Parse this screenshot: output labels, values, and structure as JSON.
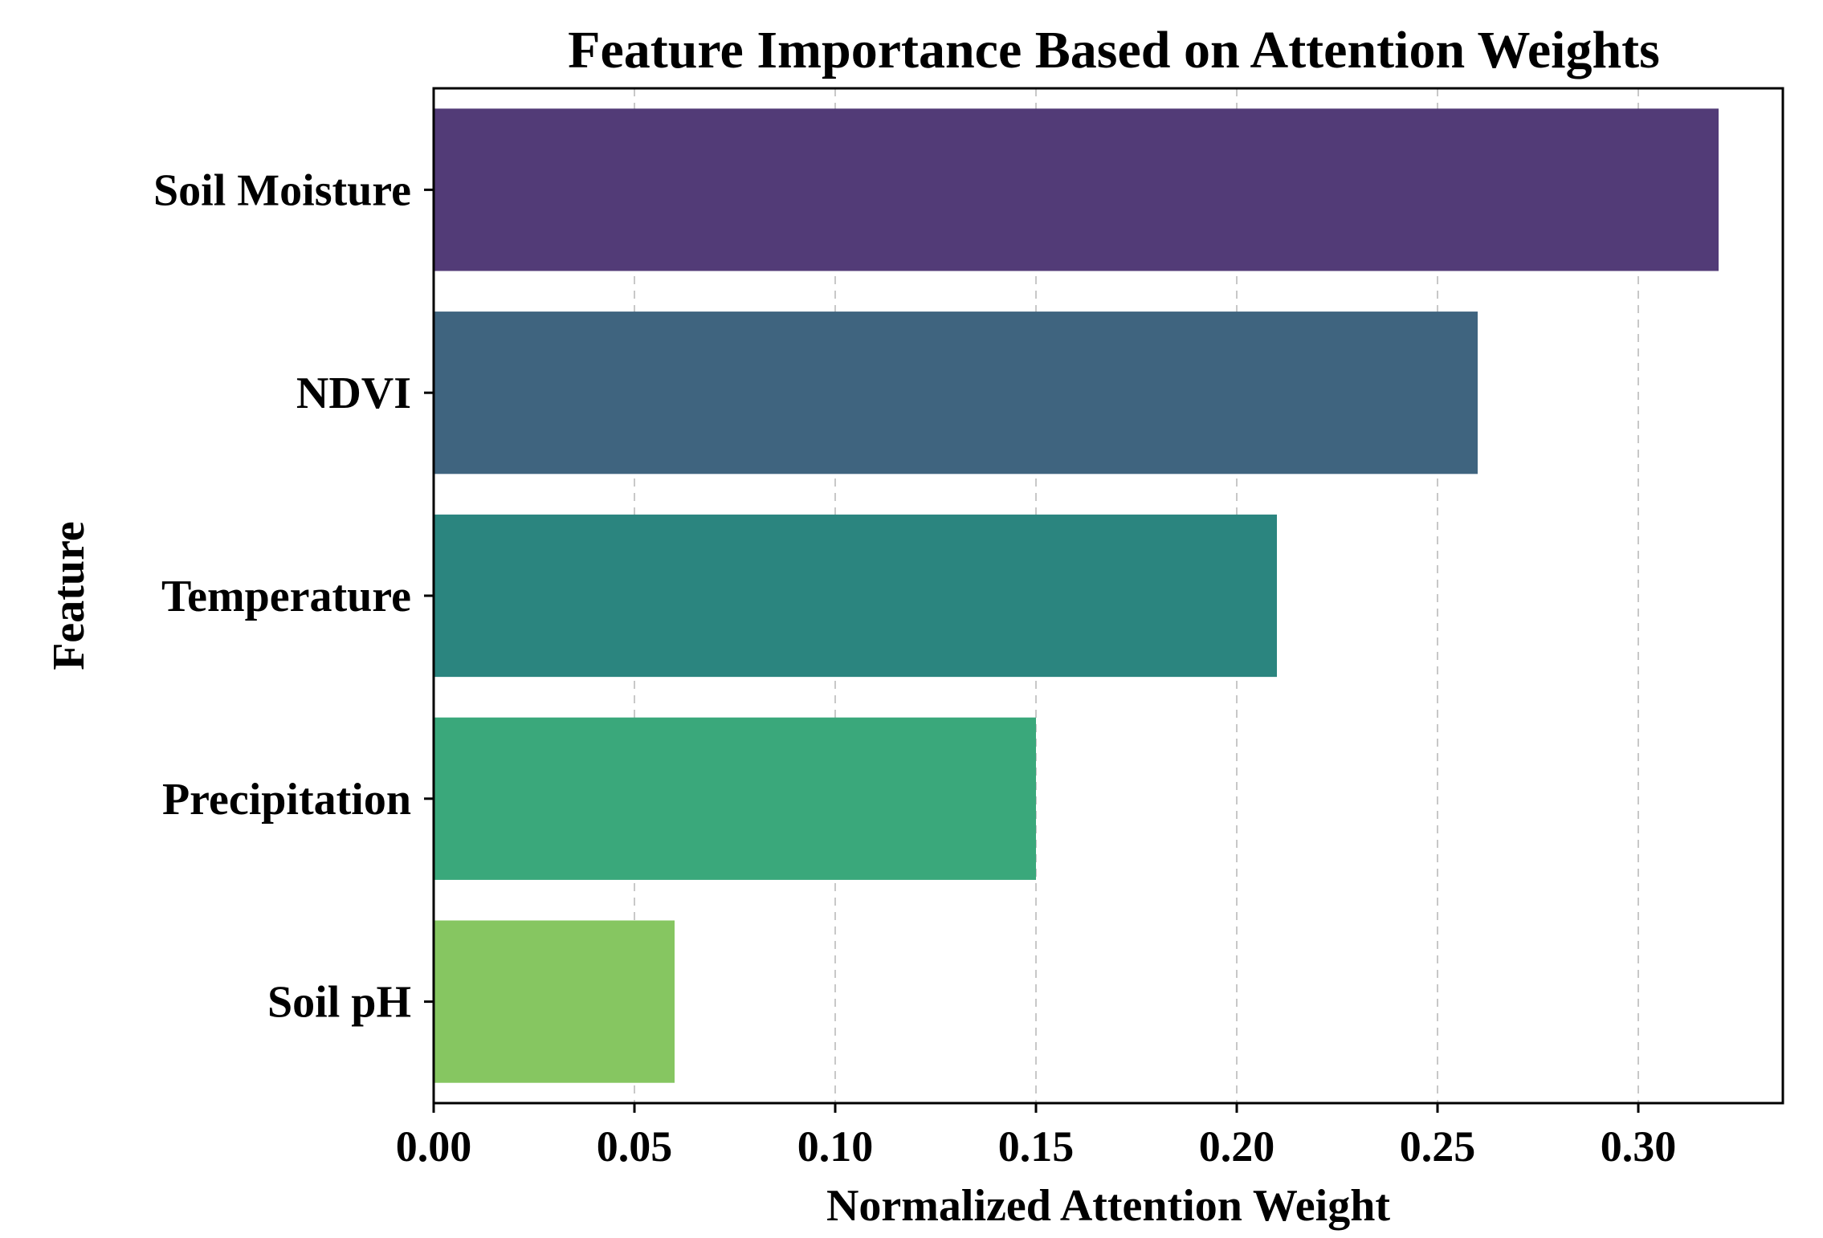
{
  "chart_data": {
    "type": "bar",
    "orientation": "horizontal",
    "title": "Feature Importance Based on Attention Weights",
    "xlabel": "Normalized Attention Weight",
    "ylabel": "Feature",
    "categories": [
      "Soil Moisture",
      "NDVI",
      "Temperature",
      "Precipitation",
      "Soil pH"
    ],
    "values": [
      0.32,
      0.26,
      0.21,
      0.15,
      0.06
    ],
    "colors": [
      "#523b77",
      "#3f647f",
      "#2b857f",
      "#3aa87b",
      "#86c661"
    ],
    "xticks": [
      "0.00",
      "0.05",
      "0.10",
      "0.15",
      "0.20",
      "0.25",
      "0.30"
    ],
    "xlim": [
      0,
      0.336
    ],
    "grid": "x-axis dashed",
    "legend": "none"
  }
}
